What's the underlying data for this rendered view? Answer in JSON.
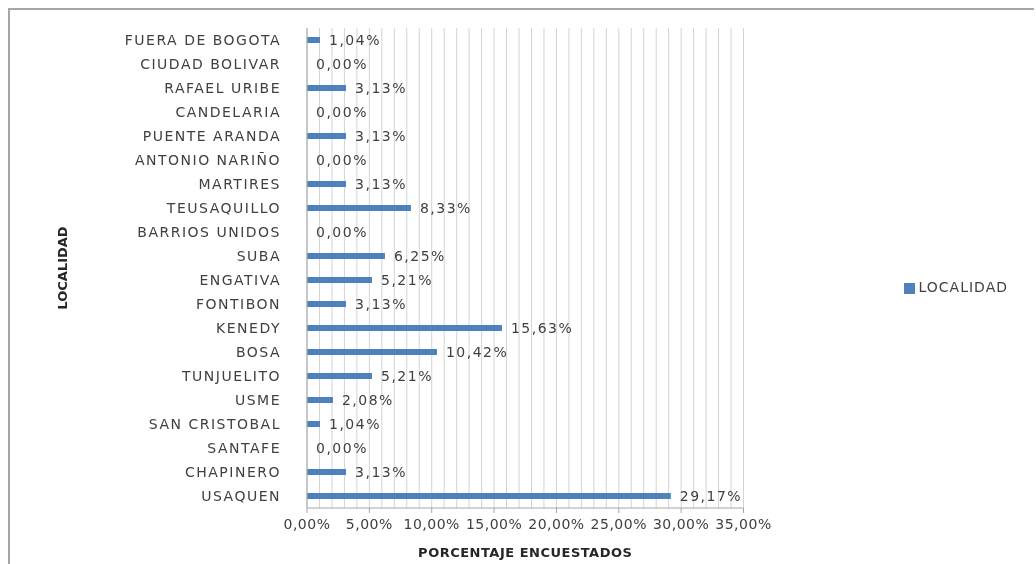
{
  "chart_data": {
    "type": "bar",
    "orientation": "horizontal",
    "xlabel": "PORCENTAJE ENCUESTADOS",
    "ylabel": "LOCALIDAD",
    "categories": [
      "FUERA DE BOGOTA",
      "CIUDAD BOLIVAR",
      "RAFAEL URIBE",
      "CANDELARIA",
      "PUENTE ARANDA",
      "ANTONIO NARIÑO",
      "MARTIRES",
      "TEUSAQUILLO",
      "BARRIOS UNIDOS",
      "SUBA",
      "ENGATIVA",
      "FONTIBON",
      "KENEDY",
      "BOSA",
      "TUNJUELITO",
      "USME",
      "SAN CRISTOBAL",
      "SANTAFE",
      "CHAPINERO",
      "USAQUEN"
    ],
    "series": [
      {
        "name": "LOCALIDAD",
        "color": "#4f81bd",
        "values": [
          1.04,
          0,
          3.13,
          0,
          3.13,
          0,
          3.13,
          8.33,
          0,
          6.25,
          5.21,
          3.13,
          15.63,
          10.42,
          5.21,
          2.08,
          1.04,
          0,
          3.13,
          29.17
        ],
        "value_labels": [
          "1,04%",
          "0,00%",
          "3,13%",
          "0,00%",
          "3,13%",
          "0,00%",
          "3,13%",
          "8,33%",
          "0,00%",
          "6,25%",
          "5,21%",
          "3,13%",
          "15,63%",
          "10,42%",
          "5,21%",
          "2,08%",
          "1,04%",
          "0,00%",
          "3,13%",
          "29,17%"
        ]
      }
    ],
    "xlim": [
      0,
      35
    ],
    "xticks": [
      {
        "value": 0,
        "label": "0,00%"
      },
      {
        "value": 1,
        "label": null
      },
      {
        "value": 2,
        "label": null
      },
      {
        "value": 3,
        "label": null
      },
      {
        "value": 4,
        "label": null
      },
      {
        "value": 5,
        "label": "5,00%"
      },
      {
        "value": 6,
        "label": null
      },
      {
        "value": 7,
        "label": null
      },
      {
        "value": 8,
        "label": null
      },
      {
        "value": 9,
        "label": null
      },
      {
        "value": 10,
        "label": "10,00%"
      },
      {
        "value": 11,
        "label": null
      },
      {
        "value": 12,
        "label": null
      },
      {
        "value": 13,
        "label": null
      },
      {
        "value": 14,
        "label": null
      },
      {
        "value": 15,
        "label": "15,00%"
      },
      {
        "value": 16,
        "label": null
      },
      {
        "value": 17,
        "label": null
      },
      {
        "value": 18,
        "label": null
      },
      {
        "value": 19,
        "label": null
      },
      {
        "value": 20,
        "label": "20,00%"
      },
      {
        "value": 21,
        "label": null
      },
      {
        "value": 22,
        "label": null
      },
      {
        "value": 23,
        "label": null
      },
      {
        "value": 24,
        "label": null
      },
      {
        "value": 25,
        "label": "25,00%"
      },
      {
        "value": 26,
        "label": null
      },
      {
        "value": 27,
        "label": null
      },
      {
        "value": 28,
        "label": null
      },
      {
        "value": 29,
        "label": null
      },
      {
        "value": 30,
        "label": "30,00%"
      },
      {
        "value": 31,
        "label": null
      },
      {
        "value": 32,
        "label": null
      },
      {
        "value": 33,
        "label": null
      },
      {
        "value": 34,
        "label": null
      },
      {
        "value": 35,
        "label": "35,00%"
      }
    ],
    "grid": "x",
    "legend": "right"
  }
}
